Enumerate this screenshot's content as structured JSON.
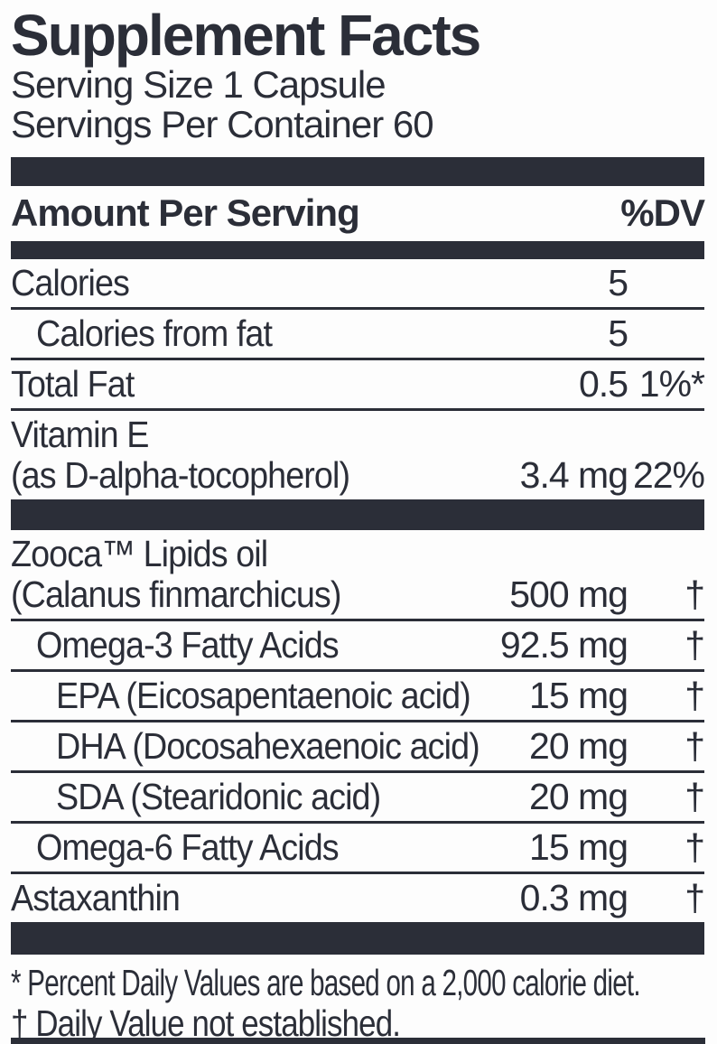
{
  "colors": {
    "ink": "#2b2e38",
    "background": "#fdfdfd"
  },
  "title": "Supplement Facts",
  "serving": {
    "size": "Serving Size 1 Capsule",
    "per_container": "Servings Per Container 60"
  },
  "columns": {
    "amount_header": "Amount Per Serving",
    "dv_header": "%DV"
  },
  "section1": {
    "rows": [
      {
        "name": "Calories",
        "amount": "5",
        "dv": ""
      },
      {
        "name": "Calories from fat",
        "amount": "5",
        "dv": ""
      },
      {
        "name": "Total Fat",
        "amount": "0.5",
        "dv": "1%*"
      },
      {
        "name": "Vitamin E",
        "name_line2": "(as D-alpha-tocopherol)",
        "amount": "3.4 mg",
        "dv": "22%"
      }
    ]
  },
  "section2": {
    "rows": [
      {
        "name": "Zooca™ Lipids oil",
        "name_line2": "(Calanus finmarchicus)",
        "amount": "500 mg",
        "dv": "†"
      },
      {
        "name": "Omega-3 Fatty Acids",
        "amount": "92.5 mg",
        "dv": "†"
      },
      {
        "name": "EPA (Eicosapentaenoic acid)",
        "amount": "15 mg",
        "dv": "†"
      },
      {
        "name": "DHA (Docosahexaenoic acid)",
        "amount": "20 mg",
        "dv": "†"
      },
      {
        "name": "SDA (Stearidonic acid)",
        "amount": "20 mg",
        "dv": "†"
      },
      {
        "name": "Omega-6 Fatty Acids",
        "amount": "15 mg",
        "dv": "†"
      },
      {
        "name": "Astaxanthin",
        "amount": "0.3 mg",
        "dv": "†"
      }
    ]
  },
  "footnotes": {
    "percent_dv": "* Percent Daily Values are based on a 2,000 calorie diet.",
    "daily_value": "† Daily Value not established."
  }
}
